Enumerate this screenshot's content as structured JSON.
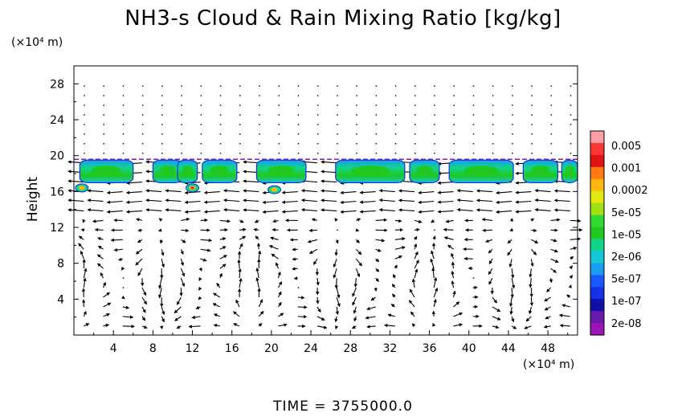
{
  "chart_data": {
    "type": "heatmap",
    "title": "NH3-s Cloud & Rain Mixing Ratio [kg/kg]",
    "ylabel": "Height",
    "y_unit": "(×10⁴ m)",
    "x_unit": "(×10⁴ m)",
    "footer": "TIME  =  3755000.0",
    "xlim": [
      0,
      51
    ],
    "ylim": [
      0,
      30
    ],
    "xticks": [
      "4",
      "8",
      "12",
      "16",
      "20",
      "24",
      "28",
      "32",
      "36",
      "40",
      "44",
      "48"
    ],
    "yticks": [
      "4",
      "8",
      "12",
      "16",
      "20",
      "24",
      "28"
    ],
    "colorbar": {
      "labels": [
        "0.005",
        "0.001",
        "0.0002",
        "5e-05",
        "1e-05",
        "2e-06",
        "5e-07",
        "1e-07",
        "2e-08"
      ],
      "colors": [
        "#ff9ea6",
        "#ff3636",
        "#e01212",
        "#ff7a10",
        "#ffb810",
        "#e2e812",
        "#a2e012",
        "#34d834",
        "#20c820",
        "#12d488",
        "#14c8d8",
        "#1a9cf0",
        "#1858ff",
        "#1430e8",
        "#1010a8",
        "#6a1aa8",
        "#9a14b8"
      ]
    },
    "cloud_layer_height": [
      16,
      19.5
    ]
  }
}
